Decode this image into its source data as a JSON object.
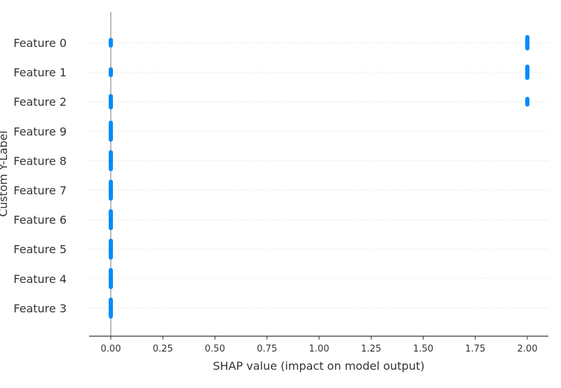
{
  "chart_data": {
    "type": "scatter",
    "subtype": "shap-beeswarm",
    "title": "",
    "xlabel": "SHAP value (impact on model output)",
    "ylabel": "Custom Y-Label",
    "xlim": [
      -0.1,
      2.1
    ],
    "x_ticks": [
      "0.00",
      "0.25",
      "0.50",
      "0.75",
      "1.00",
      "1.25",
      "1.50",
      "1.75",
      "2.00"
    ],
    "x_tick_values": [
      0,
      0.25,
      0.5,
      0.75,
      1.0,
      1.25,
      1.5,
      1.75,
      2.0
    ],
    "grid": "dotted horizontal per feature",
    "legend": "none",
    "point_color": "#008bfb",
    "zero_line_color": "#999999",
    "features": [
      {
        "name": "Feature 0",
        "points": [
          {
            "x": 0.0,
            "count": 1
          },
          {
            "x": 2.0,
            "count": 2
          }
        ]
      },
      {
        "name": "Feature 1",
        "points": [
          {
            "x": 0.0,
            "count": 1
          },
          {
            "x": 2.0,
            "count": 2
          }
        ]
      },
      {
        "name": "Feature 2",
        "points": [
          {
            "x": 0.0,
            "count": 2
          },
          {
            "x": 2.0,
            "count": 1
          }
        ]
      },
      {
        "name": "Feature 9",
        "points": [
          {
            "x": 0.0,
            "count": 3
          }
        ]
      },
      {
        "name": "Feature 8",
        "points": [
          {
            "x": 0.0,
            "count": 3
          }
        ]
      },
      {
        "name": "Feature 7",
        "points": [
          {
            "x": 0.0,
            "count": 3
          }
        ]
      },
      {
        "name": "Feature 6",
        "points": [
          {
            "x": 0.0,
            "count": 3
          }
        ]
      },
      {
        "name": "Feature 5",
        "points": [
          {
            "x": 0.0,
            "count": 3
          }
        ]
      },
      {
        "name": "Feature 4",
        "points": [
          {
            "x": 0.0,
            "count": 3
          }
        ]
      },
      {
        "name": "Feature 3",
        "points": [
          {
            "x": 0.0,
            "count": 3
          }
        ]
      }
    ]
  }
}
